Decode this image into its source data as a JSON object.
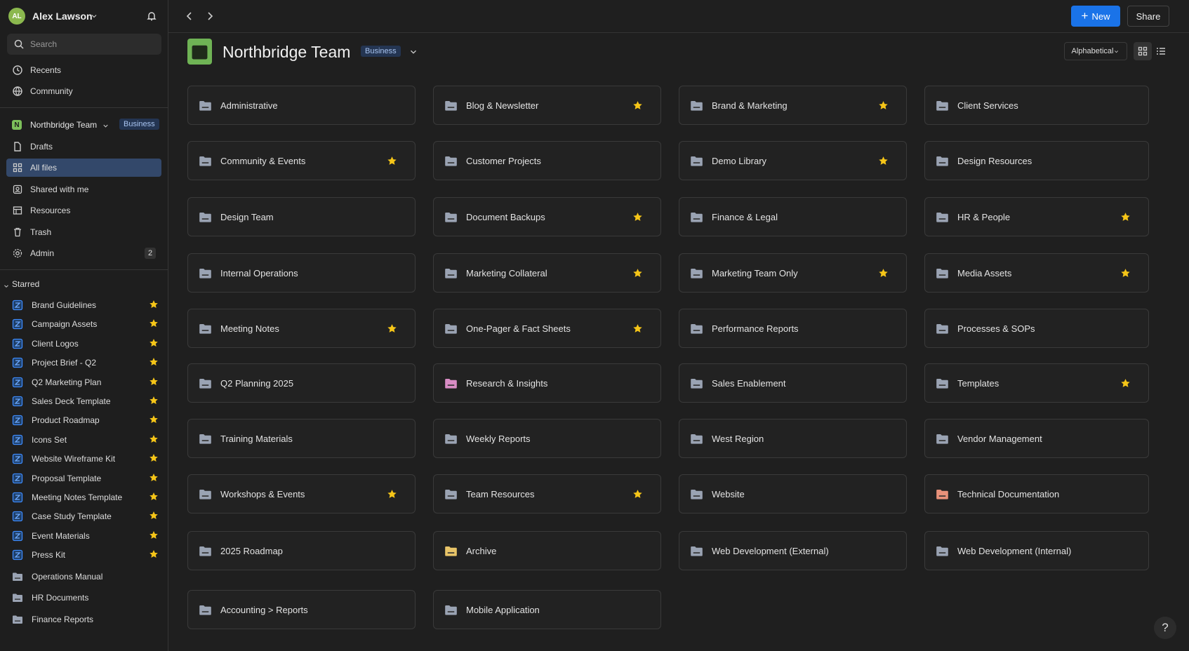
{
  "sidebar": {
    "user": {
      "initials": "AL",
      "name": "Alex Lawson"
    },
    "search_placeholder": "Search",
    "top_nav": [
      "Recents",
      "Community"
    ],
    "team": {
      "initial": "N",
      "name": "Northbridge Team",
      "badge": "Business"
    },
    "nav": [
      "Drafts",
      "All files",
      "Shared with me",
      "Resources",
      "Trash",
      "Admin"
    ],
    "selected_nav": "All files",
    "admin_count": 2,
    "starred_heading": "Starred",
    "starred": [
      {
        "name": "Brand Guidelines",
        "kind": "file",
        "starred": true
      },
      {
        "name": "Campaign Assets",
        "kind": "file",
        "starred": true
      },
      {
        "name": "Client Logos",
        "kind": "file",
        "starred": true
      },
      {
        "name": "Project Brief - Q2",
        "kind": "file",
        "starred": true
      },
      {
        "name": "Q2 Marketing Plan",
        "kind": "file",
        "starred": true
      },
      {
        "name": "Sales Deck Template",
        "kind": "file",
        "starred": true
      },
      {
        "name": "Product Roadmap",
        "kind": "file",
        "starred": true
      },
      {
        "name": "Icons Set",
        "kind": "file",
        "starred": true
      },
      {
        "name": "Website Wireframe Kit",
        "kind": "file",
        "starred": true
      },
      {
        "name": "Proposal Template",
        "kind": "file",
        "starred": true
      },
      {
        "name": "Meeting Notes Template",
        "kind": "file",
        "starred": true
      },
      {
        "name": "Case Study Template",
        "kind": "file",
        "starred": true
      },
      {
        "name": "Event Materials",
        "kind": "file",
        "starred": true
      },
      {
        "name": "Press Kit",
        "kind": "file",
        "starred": true
      },
      {
        "name": "Operations Manual",
        "kind": "folder",
        "starred": false
      },
      {
        "name": "HR Documents",
        "kind": "folder",
        "starred": false
      },
      {
        "name": "Finance Reports",
        "kind": "folder",
        "starred": false
      }
    ]
  },
  "toolbar": {
    "new_button": "New",
    "share_button": "Share"
  },
  "header": {
    "title": "Northbridge Team",
    "badge": "Business",
    "sort": "Alphabetical"
  },
  "folders": [
    {
      "name": "Administrative",
      "starred": false
    },
    {
      "name": "Blog & Newsletter",
      "starred": true
    },
    {
      "name": "Brand & Marketing",
      "starred": true
    },
    {
      "name": "Client Services",
      "starred": false
    },
    {
      "name": "Community & Events",
      "starred": true
    },
    {
      "name": "Customer Projects",
      "starred": false
    },
    {
      "name": "Demo Library",
      "starred": true
    },
    {
      "name": "Design Resources",
      "starred": false
    },
    {
      "name": "Design Team",
      "starred": false
    },
    {
      "name": "Document Backups",
      "starred": true
    },
    {
      "name": "Finance & Legal",
      "starred": false
    },
    {
      "name": "HR & People",
      "starred": true
    },
    {
      "name": "Internal Operations",
      "starred": false
    },
    {
      "name": "Marketing Collateral",
      "starred": true
    },
    {
      "name": "Marketing Team Only",
      "starred": true
    },
    {
      "name": "Media Assets",
      "starred": true
    },
    {
      "name": "Meeting Notes",
      "starred": true
    },
    {
      "name": "One-Pager & Fact Sheets",
      "starred": true
    },
    {
      "name": "Performance Reports",
      "starred": false
    },
    {
      "name": "Processes & SOPs",
      "starred": false
    },
    {
      "name": "Q2 Planning 2025",
      "starred": false
    },
    {
      "name": "Research & Insights",
      "starred": false,
      "color": "#d98cc4"
    },
    {
      "name": "Sales Enablement",
      "starred": false
    },
    {
      "name": "Templates",
      "starred": true
    },
    {
      "name": "Training Materials",
      "starred": false
    },
    {
      "name": "Weekly Reports",
      "starred": false
    },
    {
      "name": "West Region",
      "starred": false
    },
    {
      "name": "Vendor Management",
      "starred": false
    },
    {
      "name": "Workshops & Events",
      "starred": true
    },
    {
      "name": "Team Resources",
      "starred": true
    },
    {
      "name": "Website",
      "starred": false
    },
    {
      "name": "Technical Documentation",
      "starred": false,
      "color": "#e8917a"
    },
    {
      "name": "2025 Roadmap",
      "starred": false
    },
    {
      "name": "Archive",
      "starred": false,
      "color": "#e8c468"
    },
    {
      "name": "Web Development (External)",
      "starred": false
    },
    {
      "name": "Web Development (Internal)",
      "starred": false
    },
    {
      "name": "Accounting > Reports",
      "starred": false
    },
    {
      "name": "Mobile Application",
      "starred": false
    }
  ],
  "help": "?"
}
